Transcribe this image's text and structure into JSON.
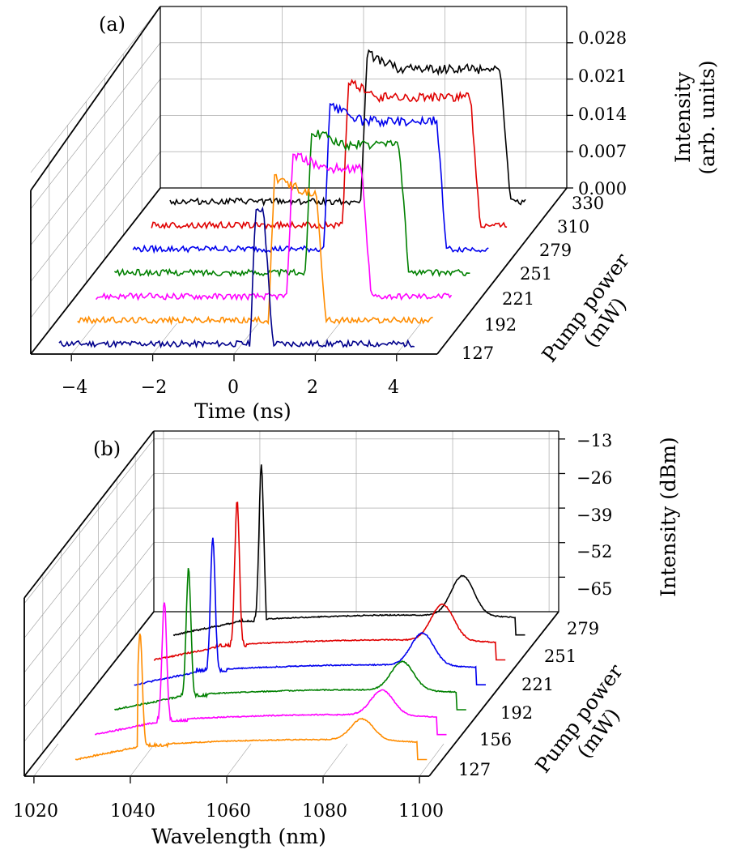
{
  "panel_a": {
    "panel_label": "(a)",
    "xlabel": "Time (ns)",
    "x_ticks": [
      "−4",
      "−2",
      "0",
      "2",
      "4"
    ],
    "zlabel_line1": "Intensity",
    "zlabel_line2": "(arb. units)",
    "z_ticks": [
      "0.028",
      "0.021",
      "0.014",
      "0.007",
      "0.000"
    ],
    "ylabel_line1": "Pump power",
    "ylabel_line2": "(mW)",
    "series_labels": [
      "330",
      "310",
      "279",
      "251",
      "221",
      "192",
      "127"
    ]
  },
  "panel_b": {
    "panel_label": "(b)",
    "xlabel": "Wavelength (nm)",
    "x_ticks": [
      "1020",
      "1040",
      "1060",
      "1080",
      "1100"
    ],
    "zlabel": "Intensity (dBm)",
    "z_ticks": [
      "−13",
      "−26",
      "−39",
      "−52",
      "−65"
    ],
    "ylabel_line1": "Pump power",
    "ylabel_line2": "(mW)",
    "series_labels": [
      "279",
      "251",
      "221",
      "192",
      "156",
      "127"
    ]
  },
  "colors": {
    "330": "#000000",
    "310": "#e00000",
    "279": "#0000ee",
    "251": "#ff00ff",
    "221": "#008000",
    "192": "#ff00ff",
    "156": "#008000",
    "127": "#ff8c00",
    "label_127_a": "#9932cc",
    "label_192_a": "#00008b",
    "label_127_b": "#00008b",
    "axis": "#000000",
    "grid": "#999999"
  },
  "chart_data": [
    {
      "type": "line",
      "subtype": "3d-waterfall",
      "title": "",
      "xlabel": "Time (ns)",
      "ylabel": "Pump power (mW)",
      "zlabel": "Intensity (arb. units)",
      "xlim": [
        -5,
        5
      ],
      "zlim": [
        0,
        0.035
      ],
      "series": [
        {
          "name": "127",
          "pulse_start": 0.2,
          "pulse_end": 0.8,
          "peak": 0.027,
          "color": "#00008b"
        },
        {
          "name": "192",
          "pulse_start": 0.2,
          "pulse_end": 1.7,
          "peak": 0.028,
          "color": "#ff8c00"
        },
        {
          "name": "221",
          "pulse_start": 0.2,
          "pulse_end": 2.4,
          "peak": 0.028,
          "color": "#ff00ff"
        },
        {
          "name": "251",
          "pulse_start": 0.2,
          "pulse_end": 2.9,
          "peak": 0.028,
          "color": "#008000"
        },
        {
          "name": "279",
          "pulse_start": 0.2,
          "pulse_end": 3.4,
          "peak": 0.028,
          "color": "#0000ee"
        },
        {
          "name": "310",
          "pulse_start": 0.2,
          "pulse_end": 3.8,
          "peak": 0.028,
          "color": "#e00000"
        },
        {
          "name": "330",
          "pulse_start": 0.2,
          "pulse_end": 4.1,
          "peak": 0.029,
          "color": "#000000"
        }
      ]
    },
    {
      "type": "line",
      "subtype": "3d-waterfall",
      "title": "",
      "xlabel": "Wavelength (nm)",
      "ylabel": "Pump power (mW)",
      "zlabel": "Intensity (dBm)",
      "xlim": [
        1018,
        1102
      ],
      "zlim": [
        -78,
        -13
      ],
      "series": [
        {
          "name": "127",
          "peak_wavelength": 1040,
          "peak_dbm": -30,
          "color": "#ff8c00"
        },
        {
          "name": "156",
          "peak_wavelength": 1041,
          "peak_dbm": -27,
          "color": "#ff00ff"
        },
        {
          "name": "192",
          "peak_wavelength": 1042,
          "peak_dbm": -24,
          "color": "#008000"
        },
        {
          "name": "221",
          "peak_wavelength": 1043,
          "peak_dbm": -21,
          "color": "#0000ee"
        },
        {
          "name": "251",
          "peak_wavelength": 1044,
          "peak_dbm": -17,
          "color": "#e00000"
        },
        {
          "name": "279",
          "peak_wavelength": 1045,
          "peak_dbm": -13,
          "color": "#000000"
        }
      ]
    }
  ]
}
